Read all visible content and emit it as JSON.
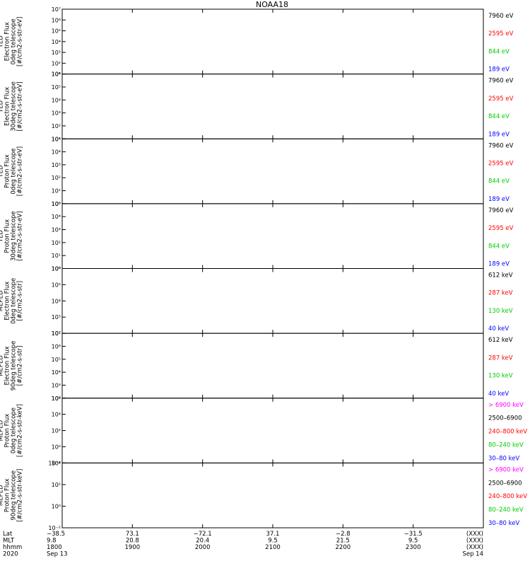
{
  "chart_data": {
    "type": "line",
    "title": "NOAA18",
    "x_categories": [
      "1800",
      "1900",
      "2000",
      "2100",
      "2200",
      "2300"
    ],
    "x_range_hhmm": [
      "1800",
      "0000"
    ],
    "ephemeris": {
      "row_labels": [
        "Lat",
        "MLT",
        "hhmm",
        "2020"
      ],
      "columns": [
        {
          "lat": "−38.5",
          "mlt": "9.8",
          "hhmm": "1800",
          "date": "Sep 13"
        },
        {
          "lat": "73.1",
          "mlt": "20.8",
          "hhmm": "1900",
          "date": ""
        },
        {
          "lat": "−72.1",
          "mlt": "20.4",
          "hhmm": "2000",
          "date": ""
        },
        {
          "lat": "37.1",
          "mlt": "9.5",
          "hhmm": "2100",
          "date": ""
        },
        {
          "lat": "−2.8",
          "mlt": "21.5",
          "hhmm": "2200",
          "date": ""
        },
        {
          "lat": "−31.5",
          "mlt": "9.5",
          "hhmm": "2300",
          "date": ""
        },
        {
          "lat": "(XXX)",
          "mlt": "(XXX)",
          "hhmm": "(XXX)",
          "date": "Sep 14"
        }
      ]
    },
    "panels": [
      {
        "ylabel": [
          "TED",
          "Electron Flux",
          "0deg telescope",
          "[#/cm2-s-str-eV]"
        ],
        "ylog": [
          1,
          7
        ],
        "ytick_labels": [
          "10¹",
          "10²",
          "10³",
          "10⁴",
          "10⁵",
          "10⁶",
          "10⁷"
        ],
        "series": [
          {
            "name": "7960 eV",
            "color": "#000000"
          },
          {
            "name": "2595 eV",
            "color": "#ff0000"
          },
          {
            "name": "844 eV",
            "color": "#00cc00"
          },
          {
            "name": "189 eV",
            "color": "#0000ff"
          }
        ]
      },
      {
        "ylabel": [
          "TED",
          "Electron Flux",
          "30deg telescope",
          "[#/cm2-s-str-eV]"
        ],
        "ylog": [
          1,
          6
        ],
        "ytick_labels": [
          "10¹",
          "10²",
          "10³",
          "10⁴",
          "10⁵",
          "10⁶"
        ],
        "series": [
          {
            "name": "7960 eV",
            "color": "#000000"
          },
          {
            "name": "2595 eV",
            "color": "#ff0000"
          },
          {
            "name": "844 eV",
            "color": "#00cc00"
          },
          {
            "name": "189 eV",
            "color": "#0000ff"
          }
        ]
      },
      {
        "ylabel": [
          "TED",
          "Proton Flux",
          "0deg telescope",
          "[#/cm2-s-str-eV]"
        ],
        "ylog": [
          0,
          5
        ],
        "ytick_labels": [
          "10⁰",
          "10¹",
          "10²",
          "10³",
          "10⁴",
          "10⁵"
        ],
        "series": [
          {
            "name": "7960 eV",
            "color": "#000000"
          },
          {
            "name": "2595 eV",
            "color": "#ff0000"
          },
          {
            "name": "844 eV",
            "color": "#00cc00"
          },
          {
            "name": "189 eV",
            "color": "#0000ff"
          }
        ]
      },
      {
        "ylabel": [
          "TED",
          "Proton Flux",
          "30deg telescope",
          "[#/cm2-s-str-eV]"
        ],
        "ylog": [
          0,
          5
        ],
        "ytick_labels": [
          "10⁰",
          "10¹",
          "10²",
          "10³",
          "10⁴",
          "10⁵"
        ],
        "series": [
          {
            "name": "7960 eV",
            "color": "#000000"
          },
          {
            "name": "2595 eV",
            "color": "#ff0000"
          },
          {
            "name": "844 eV",
            "color": "#00cc00"
          },
          {
            "name": "189 eV",
            "color": "#0000ff"
          }
        ]
      },
      {
        "ylabel": [
          "MEPED",
          "Electron Flux",
          "0deg telescope",
          "[#/cm2-s-str]"
        ],
        "ylog": [
          2,
          6
        ],
        "ytick_labels": [
          "10²",
          "10³",
          "10⁴",
          "10⁵",
          "10⁶"
        ],
        "series": [
          {
            "name": "612 keV",
            "color": "#000000"
          },
          {
            "name": "287 keV",
            "color": "#ff0000"
          },
          {
            "name": "130 keV",
            "color": "#00cc00"
          },
          {
            "name": "40 keV",
            "color": "#0000ff"
          }
        ]
      },
      {
        "ylabel": [
          "MEPED",
          "Electron Flux",
          "90deg telescope",
          "[#/cm2-s-str]"
        ],
        "ylog": [
          2,
          7
        ],
        "ytick_labels": [
          "10²",
          "10³",
          "10⁴",
          "10⁵",
          "10⁶",
          "10⁷"
        ],
        "series": [
          {
            "name": "612 keV",
            "color": "#000000"
          },
          {
            "name": "287 keV",
            "color": "#ff0000"
          },
          {
            "name": "130 keV",
            "color": "#00cc00"
          },
          {
            "name": "40 keV",
            "color": "#0000ff"
          }
        ]
      },
      {
        "ylabel": [
          "MEPED",
          "Proton Flux",
          "0deg telescope",
          "[#/cm2-s-str-keV]"
        ],
        "ylog": [
          -2,
          6
        ],
        "ytick_labels": [
          "10⁻²",
          "10⁰",
          "10²",
          "10⁴",
          "10⁶"
        ],
        "series": [
          {
            "name": "> 6900 keV",
            "color": "#ff00ff"
          },
          {
            "name": "2500–6900",
            "color": "#000000"
          },
          {
            "name": "240–800 keV",
            "color": "#ff0000"
          },
          {
            "name": "80–240 keV",
            "color": "#00cc00"
          },
          {
            "name": "30–80 keV",
            "color": "#0000ff"
          }
        ]
      },
      {
        "ylabel": [
          "MEPED",
          "Proton Flux",
          "90deg telescope",
          "[#/cm2-s-str-keV]"
        ],
        "ylog": [
          -2,
          6
        ],
        "ytick_labels": [
          "10⁻²",
          "10⁰",
          "10²",
          "10⁴"
        ],
        "series": [
          {
            "name": "> 6900 keV",
            "color": "#ff00ff"
          },
          {
            "name": "2500–6900",
            "color": "#000000"
          },
          {
            "name": "240–800 keV",
            "color": "#ff0000"
          },
          {
            "name": "80–240 keV",
            "color": "#00cc00"
          },
          {
            "name": "30–80 keV",
            "color": "#0000ff"
          }
        ]
      }
    ]
  }
}
